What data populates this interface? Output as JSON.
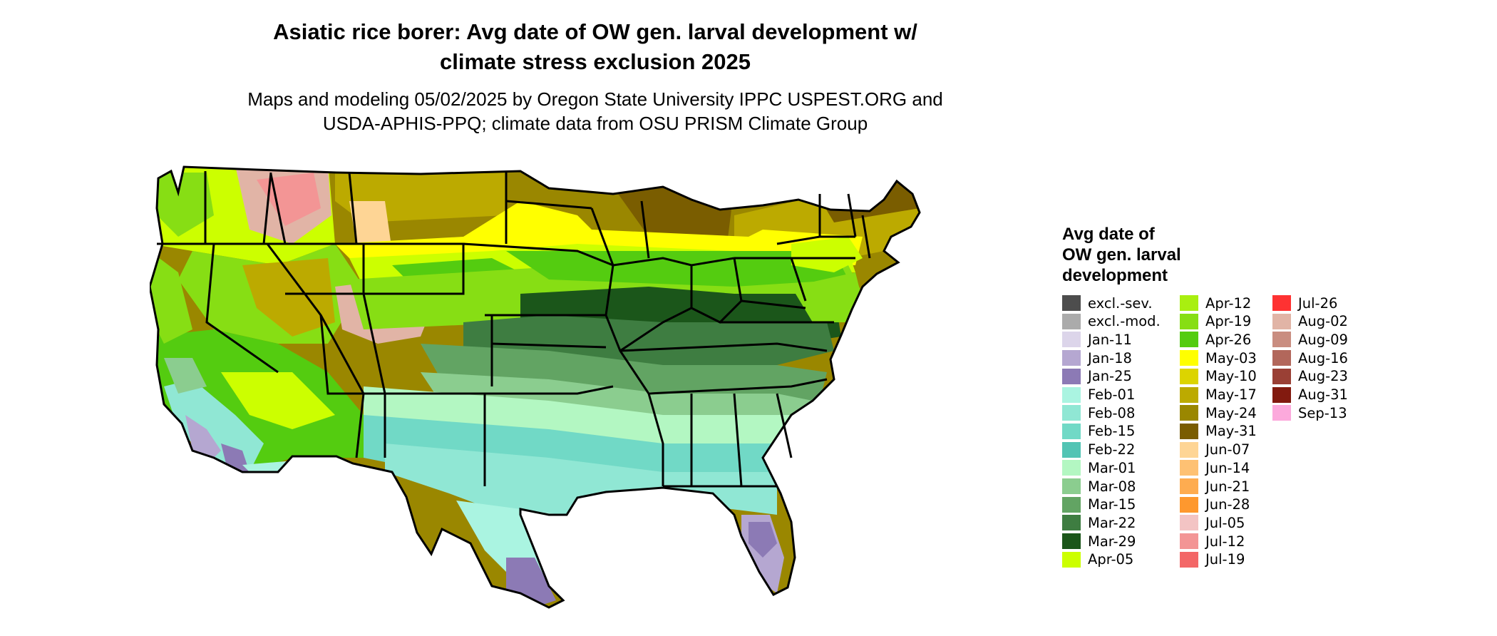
{
  "title": {
    "line1": "Asiatic rice borer: Avg date of OW gen. larval development w/",
    "line2": "climate stress exclusion 2025"
  },
  "subtitle": {
    "line1": "Maps and modeling 05/02/2025 by Oregon State University IPPC USPEST.ORG and",
    "line2": "USDA-APHIS-PPQ; climate data from OSU PRISM Climate Group"
  },
  "legend": {
    "title_line1": "Avg date of",
    "title_line2": "OW gen. larval",
    "title_line3": "development",
    "items": [
      {
        "label": "excl.-sev.",
        "color": "#4d4d4d"
      },
      {
        "label": "excl.-mod.",
        "color": "#ababab"
      },
      {
        "label": "Jan-11",
        "color": "#dcd5ea"
      },
      {
        "label": "Jan-18",
        "color": "#b5a7d1"
      },
      {
        "label": "Jan-25",
        "color": "#8c7ab5"
      },
      {
        "label": "Feb-01",
        "color": "#aaf4e1"
      },
      {
        "label": "Feb-08",
        "color": "#90e7d4"
      },
      {
        "label": "Feb-15",
        "color": "#71d9c6"
      },
      {
        "label": "Feb-22",
        "color": "#52c4b4"
      },
      {
        "label": "Mar-01",
        "color": "#b3f7c2"
      },
      {
        "label": "Mar-08",
        "color": "#8bcd8f"
      },
      {
        "label": "Mar-15",
        "color": "#62a463"
      },
      {
        "label": "Mar-22",
        "color": "#3e7d41"
      },
      {
        "label": "Mar-29",
        "color": "#1b561a"
      },
      {
        "label": "Apr-05",
        "color": "#ccff00"
      },
      {
        "label": "Apr-12",
        "color": "#a9ef10"
      },
      {
        "label": "Apr-19",
        "color": "#87de14"
      },
      {
        "label": "Apr-26",
        "color": "#54cc10"
      },
      {
        "label": "May-03",
        "color": "#ffff00"
      },
      {
        "label": "May-10",
        "color": "#dcd400"
      },
      {
        "label": "May-17",
        "color": "#bcaa00"
      },
      {
        "label": "May-24",
        "color": "#9a8700"
      },
      {
        "label": "May-31",
        "color": "#7a5d00"
      },
      {
        "label": "Jun-07",
        "color": "#fed595"
      },
      {
        "label": "Jun-14",
        "color": "#fec173"
      },
      {
        "label": "Jun-21",
        "color": "#feac50"
      },
      {
        "label": "Jun-28",
        "color": "#fe982e"
      },
      {
        "label": "Jul-05",
        "color": "#f3c4c4"
      },
      {
        "label": "Jul-12",
        "color": "#f39595"
      },
      {
        "label": "Jul-19",
        "color": "#f36767"
      },
      {
        "label": "Jul-26",
        "color": "#fe3232"
      },
      {
        "label": "Aug-02",
        "color": "#e1b4a6"
      },
      {
        "label": "Aug-09",
        "color": "#c98d80"
      },
      {
        "label": "Aug-16",
        "color": "#b2675b"
      },
      {
        "label": "Aug-23",
        "color": "#9a4035"
      },
      {
        "label": "Aug-31",
        "color": "#821a0f"
      },
      {
        "label": "Sep-13",
        "color": "#fca9dc"
      }
    ]
  }
}
